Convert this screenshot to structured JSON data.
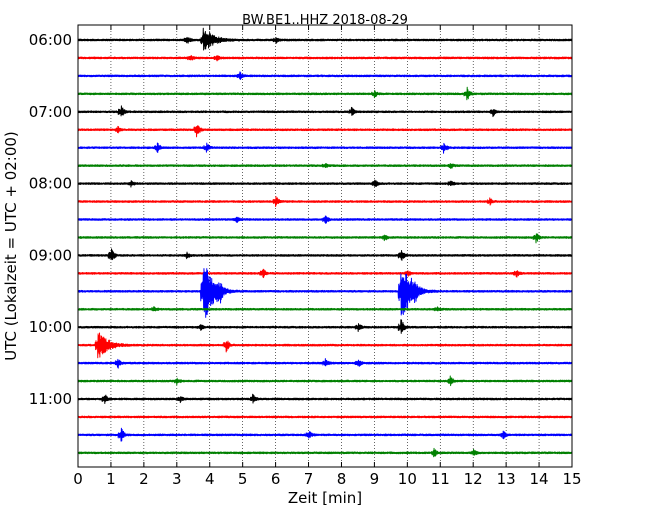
{
  "chart_data": {
    "type": "line",
    "title": "BW.BE1..HHZ 2018-08-29",
    "xlabel": "Zeit  [min]",
    "ylabel": "UTC (Lokalzeit = UTC + 02:00)",
    "xlim": [
      0,
      15
    ],
    "x_ticks": [
      "0",
      "1",
      "2",
      "3",
      "4",
      "5",
      "6",
      "7",
      "8",
      "9",
      "10",
      "11",
      "12",
      "13",
      "14",
      "15"
    ],
    "y_tick_labels": [
      "06:00",
      "07:00",
      "08:00",
      "09:00",
      "10:00",
      "11:00"
    ],
    "grid": {
      "vertical_dotted": true
    },
    "trace_colors": [
      "#000000",
      "#ff0000",
      "#0000ff",
      "#008000"
    ],
    "traces": [
      {
        "start": "06:00",
        "color": "#000000",
        "events": [
          [
            3.8,
            12
          ],
          [
            3.3,
            4
          ],
          [
            6,
            3
          ]
        ]
      },
      {
        "start": "06:15",
        "color": "#ff0000",
        "events": [
          [
            3.4,
            3
          ],
          [
            4.2,
            2.5
          ]
        ]
      },
      {
        "start": "06:30",
        "color": "#0000ff",
        "events": [
          [
            4.9,
            4
          ]
        ]
      },
      {
        "start": "06:45",
        "color": "#008000",
        "events": [
          [
            11.8,
            7
          ],
          [
            9,
            3
          ]
        ]
      },
      {
        "start": "07:00",
        "color": "#000000",
        "events": [
          [
            1.3,
            6
          ],
          [
            8.3,
            4
          ],
          [
            12.6,
            4
          ]
        ]
      },
      {
        "start": "07:15",
        "color": "#ff0000",
        "events": [
          [
            3.6,
            7
          ],
          [
            1.2,
            3
          ]
        ]
      },
      {
        "start": "07:30",
        "color": "#0000ff",
        "events": [
          [
            2.4,
            5
          ],
          [
            11.1,
            5
          ],
          [
            3.9,
            4
          ]
        ]
      },
      {
        "start": "07:45",
        "color": "#008000",
        "events": [
          [
            11.3,
            3
          ],
          [
            7.5,
            2
          ]
        ]
      },
      {
        "start": "08:00",
        "color": "#000000",
        "events": [
          [
            9.0,
            4
          ],
          [
            1.6,
            3
          ],
          [
            11.3,
            3
          ]
        ]
      },
      {
        "start": "08:15",
        "color": "#ff0000",
        "events": [
          [
            6.0,
            5
          ],
          [
            12.5,
            3
          ]
        ]
      },
      {
        "start": "08:30",
        "color": "#0000ff",
        "events": [
          [
            7.5,
            4
          ],
          [
            4.8,
            3
          ]
        ]
      },
      {
        "start": "08:45",
        "color": "#008000",
        "events": [
          [
            13.9,
            5
          ],
          [
            9.3,
            3
          ]
        ]
      },
      {
        "start": "09:00",
        "color": "#000000",
        "events": [
          [
            1.0,
            8
          ],
          [
            9.8,
            6
          ],
          [
            3.3,
            3
          ]
        ]
      },
      {
        "start": "09:15",
        "color": "#ff0000",
        "events": [
          [
            5.6,
            5
          ],
          [
            13.3,
            4
          ],
          [
            10.0,
            3
          ]
        ]
      },
      {
        "start": "09:30",
        "color": "#0000ff",
        "events": [
          [
            3.8,
            30
          ],
          [
            9.8,
            28
          ],
          [
            4.3,
            9
          ],
          [
            10.2,
            8
          ]
        ]
      },
      {
        "start": "09:45",
        "color": "#008000",
        "events": [
          [
            2.3,
            2
          ],
          [
            10.9,
            2
          ]
        ]
      },
      {
        "start": "10:00",
        "color": "#000000",
        "events": [
          [
            9.8,
            9
          ],
          [
            8.5,
            4
          ],
          [
            3.7,
            3
          ]
        ]
      },
      {
        "start": "10:15",
        "color": "#ff0000",
        "events": [
          [
            0.6,
            13
          ],
          [
            4.5,
            6
          ]
        ]
      },
      {
        "start": "10:30",
        "color": "#0000ff",
        "events": [
          [
            1.2,
            5
          ],
          [
            7.5,
            4
          ],
          [
            8.5,
            4
          ]
        ]
      },
      {
        "start": "10:45",
        "color": "#008000",
        "events": [
          [
            11.3,
            5
          ],
          [
            3.0,
            3
          ]
        ]
      },
      {
        "start": "11:00",
        "color": "#000000",
        "events": [
          [
            0.8,
            5
          ],
          [
            5.3,
            4
          ],
          [
            3.1,
            3
          ]
        ]
      },
      {
        "start": "11:15",
        "color": "#ff0000",
        "events": []
      },
      {
        "start": "11:30",
        "color": "#0000ff",
        "events": [
          [
            1.3,
            8
          ],
          [
            7.0,
            4
          ],
          [
            12.9,
            4
          ]
        ]
      },
      {
        "start": "11:45",
        "color": "#008000",
        "events": [
          [
            10.8,
            4
          ],
          [
            12.0,
            3
          ]
        ]
      }
    ]
  }
}
